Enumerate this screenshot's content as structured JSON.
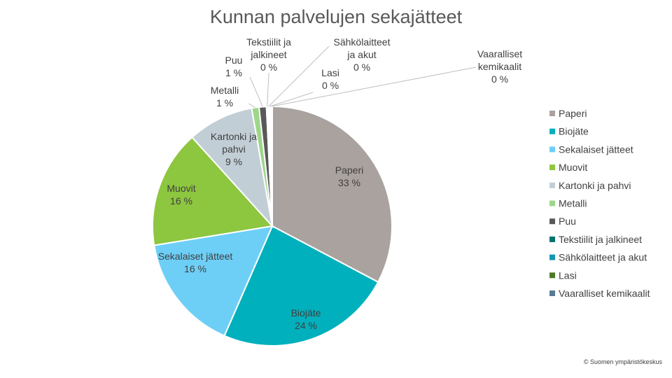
{
  "chart_data": {
    "type": "pie",
    "title": "Kunnan palvelujen sekajätteet",
    "slices": [
      {
        "name": "Paperi",
        "value": 33,
        "label": [
          "Paperi",
          "33 %"
        ],
        "color": "#a9a29e"
      },
      {
        "name": "Biojäte",
        "value": 24,
        "label": [
          "Biojäte",
          "24 %"
        ],
        "color": "#00b0bc"
      },
      {
        "name": "Sekalaiset jätteet",
        "value": 16,
        "label": [
          "Sekalaiset jätteet",
          "16 %"
        ],
        "color": "#6dcff6"
      },
      {
        "name": "Muovit",
        "value": 16,
        "label": [
          "Muovit",
          "16 %"
        ],
        "color": "#8dc63f"
      },
      {
        "name": "Kartonki ja pahvi",
        "value": 9,
        "label": [
          "Kartonki ja",
          "pahvi",
          "9 %"
        ],
        "color": "#c2ced6"
      },
      {
        "name": "Metalli",
        "value": 1,
        "label": [
          "Metalli",
          "1 %"
        ],
        "color": "#9ed68a"
      },
      {
        "name": "Puu",
        "value": 1,
        "label": [
          "Puu",
          "1 %"
        ],
        "color": "#595959"
      },
      {
        "name": "Tekstiilit ja jalkineet",
        "value": 0,
        "label": [
          "Tekstiilit ja",
          "jalkineet",
          "0 %"
        ],
        "color": "#00736e"
      },
      {
        "name": "Sähkölaitteet ja akut",
        "value": 0,
        "label": [
          "Sähkölaitteet",
          "ja akut",
          "0 %"
        ],
        "color": "#1595b3"
      },
      {
        "name": "Lasi",
        "value": 0,
        "label": [
          "Lasi",
          "0 %"
        ],
        "color": "#4e7a24"
      },
      {
        "name": "Vaaralliset kemikaalit",
        "value": 0,
        "label": [
          "Vaaralliset",
          "kemikaalit",
          "0 %"
        ],
        "color": "#587a94"
      }
    ],
    "legend_position": "right"
  },
  "credit": "© Suomen ympäristökeskus"
}
